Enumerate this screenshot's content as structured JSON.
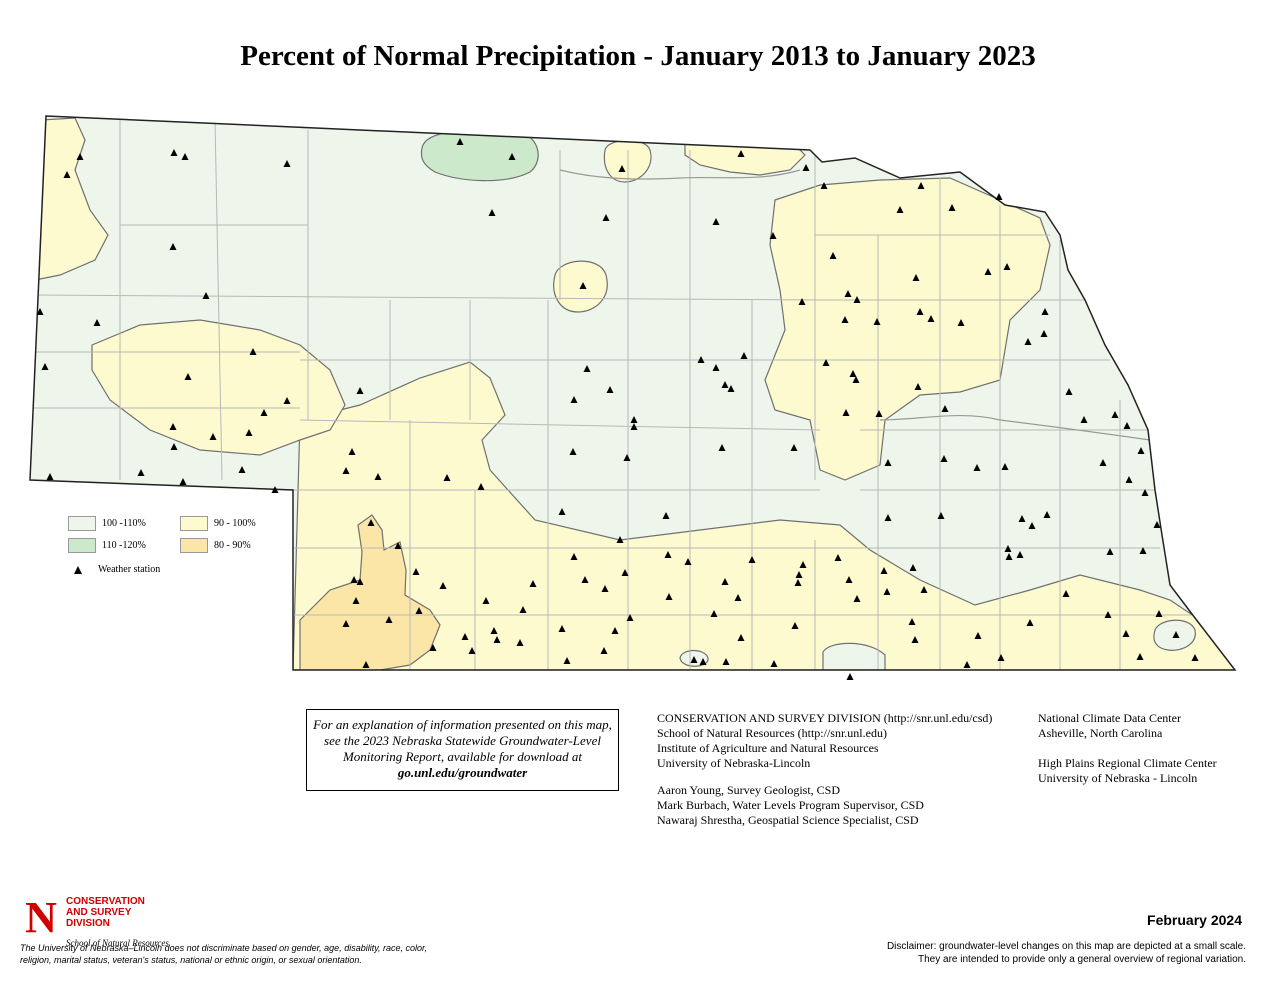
{
  "title": "Percent of Normal Precipitation - January 2013 to January 2023",
  "legend": {
    "items": [
      {
        "label": "100 -110%",
        "color": "#eef6ec"
      },
      {
        "label": "110 -120%",
        "color": "#cde9cc"
      },
      {
        "label": "90 - 100%",
        "color": "#fdfad0"
      },
      {
        "label": "80 - 90%",
        "color": "#fbe6a8"
      }
    ],
    "station_label": "Weather station"
  },
  "explanation": {
    "text": "For an explanation of information presented on this map, see the 2023 Nebraska Statewide Groundwater-Level Monitoring Report, available for download at",
    "link": "go.unl.edu/groundwater"
  },
  "credits_left": [
    "CONSERVATION AND SURVEY DIVISION (http://snr.unl.edu/csd)",
    "School of Natural Resources (http://snr.unl.edu)",
    "Institute of Agriculture and Natural Resources",
    "University of Nebraska-Lincoln"
  ],
  "people": [
    "Aaron Young, Survey Geologist, CSD",
    "Mark Burbach, Water Levels Program Supervisor, CSD",
    "Nawaraj Shrestha, Geospatial Science Specialist, CSD"
  ],
  "credits_right": [
    "National Climate Data Center",
    "Asheville, North Carolina",
    "",
    "High Plains Regional Climate Center",
    "University of Nebraska - Lincoln"
  ],
  "logo": {
    "mark": "N",
    "division": "CONSERVATION AND SURVEY DIVISION",
    "school": "School of Natural Resources"
  },
  "nondiscrimination": "The University of Nebraska–Lincoln does not discriminate based on gender, age, disability, race, color, religion, marital status, veteran's status, national or ethnic origin, or sexual orientation.",
  "date": "February 2024",
  "disclaimer": [
    "Disclaimer: groundwater-level changes on this map are depicted at a small scale.",
    "They are intended to provide only a general overview of regional variation."
  ]
}
